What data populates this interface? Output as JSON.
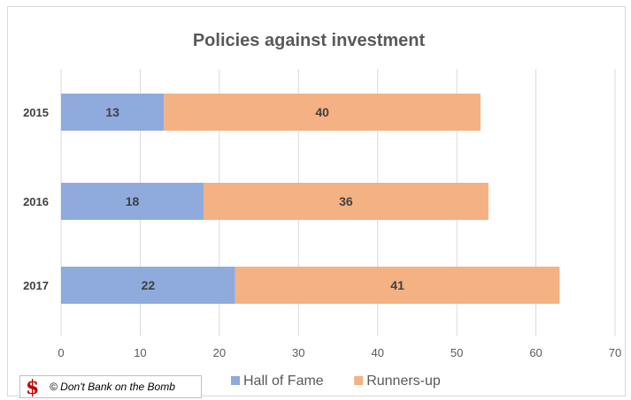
{
  "chart_data": {
    "type": "bar",
    "orientation": "horizontal",
    "stacked": true,
    "title": "Policies against investment",
    "categories": [
      "2015",
      "2016",
      "2017"
    ],
    "series": [
      {
        "name": "Hall of Fame",
        "values": [
          13,
          18,
          22
        ],
        "color": "#8faadc"
      },
      {
        "name": "Runners-up",
        "values": [
          40,
          36,
          41
        ],
        "color": "#f4b183"
      }
    ],
    "xlim": [
      0,
      70
    ],
    "x_ticks": [
      "0",
      "10",
      "20",
      "30",
      "40",
      "50",
      "60",
      "70"
    ],
    "grid": true,
    "legend_position": "bottom"
  },
  "watermark": {
    "logo": "$",
    "text": "© Don't Bank on the Bomb"
  },
  "colors": {
    "gridline": "#d9d9d9",
    "axis_text": "#595959"
  }
}
